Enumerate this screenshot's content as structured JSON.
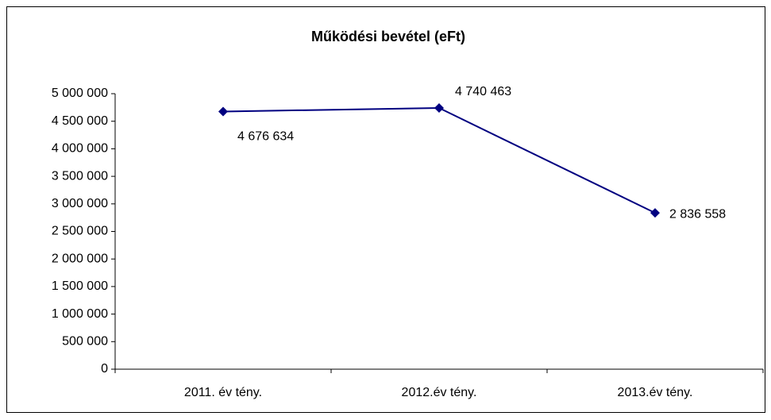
{
  "chart_data": {
    "type": "line",
    "title": "Működési bevétel (eFt)",
    "categories": [
      "2011. év tény.",
      "2012.év tény.",
      "2013.év tény."
    ],
    "series": [
      {
        "color": "#000080",
        "values": [
          4676634,
          4740463,
          2836558
        ],
        "value_labels": [
          "4 676 634",
          "4 740 463",
          "2 836 558"
        ]
      }
    ],
    "ylim": [
      0,
      5000000
    ],
    "yticks": [
      0,
      {
        "value": 500000,
        "label": "500 000"
      },
      {
        "value": 1000000,
        "label": "1 000 000"
      },
      {
        "value": 1500000,
        "label": "1 500 000"
      },
      {
        "value": 2000000,
        "label": "2 000 000"
      },
      {
        "value": 2500000,
        "label": "2 500 000"
      },
      {
        "value": 3000000,
        "label": "3 000 000"
      },
      {
        "value": 3500000,
        "label": "3 500 000"
      },
      {
        "value": 4000000,
        "label": "4 000 000"
      },
      {
        "value": 4500000,
        "label": "4 500 000"
      },
      {
        "value": 5000000,
        "label": "5 000 000"
      }
    ],
    "grid": false
  }
}
